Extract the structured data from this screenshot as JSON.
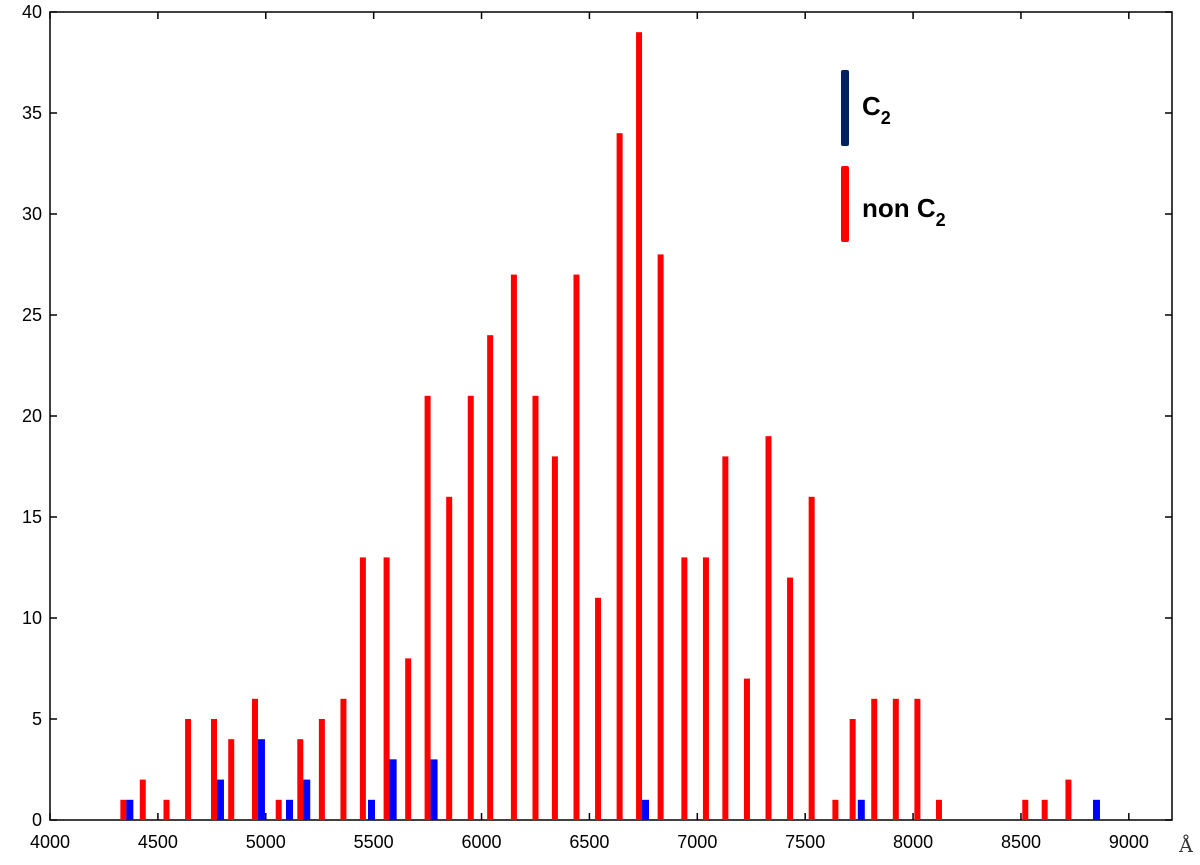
{
  "chart_data": {
    "type": "bar",
    "xlim": [
      4000,
      9200
    ],
    "ylim": [
      0,
      40
    ],
    "x_unit": "Å",
    "x_ticks": [
      4000,
      4500,
      5000,
      5500,
      6000,
      6500,
      7000,
      7500,
      8000,
      8500,
      9000
    ],
    "y_ticks": [
      0,
      5,
      10,
      15,
      20,
      25,
      30,
      35,
      40
    ],
    "grid": false,
    "legend_position": "top-right",
    "series": [
      {
        "name": "C2",
        "color": "#0000ff",
        "legend_color": "#002060",
        "points": [
          {
            "x": 4370,
            "y": 1
          },
          {
            "x": 4790,
            "y": 2
          },
          {
            "x": 4980,
            "y": 4
          },
          {
            "x": 5110,
            "y": 1
          },
          {
            "x": 5190,
            "y": 2
          },
          {
            "x": 5490,
            "y": 1
          },
          {
            "x": 5590,
            "y": 3
          },
          {
            "x": 5590,
            "y": 3
          },
          {
            "x": 5780,
            "y": 3
          },
          {
            "x": 6760,
            "y": 1
          },
          {
            "x": 7760,
            "y": 1
          },
          {
            "x": 8850,
            "y": 1
          }
        ]
      },
      {
        "name": "non C2",
        "color": "#ff0000",
        "legend_color": "#ff0000",
        "points": [
          {
            "x": 4340,
            "y": 1
          },
          {
            "x": 4430,
            "y": 2
          },
          {
            "x": 4540,
            "y": 1
          },
          {
            "x": 4640,
            "y": 5
          },
          {
            "x": 4760,
            "y": 5
          },
          {
            "x": 4840,
            "y": 4
          },
          {
            "x": 4950,
            "y": 6
          },
          {
            "x": 5060,
            "y": 1
          },
          {
            "x": 5160,
            "y": 4
          },
          {
            "x": 5260,
            "y": 5
          },
          {
            "x": 5360,
            "y": 6
          },
          {
            "x": 5450,
            "y": 13
          },
          {
            "x": 5560,
            "y": 13
          },
          {
            "x": 5660,
            "y": 8
          },
          {
            "x": 5750,
            "y": 21
          },
          {
            "x": 5850,
            "y": 16
          },
          {
            "x": 5950,
            "y": 21
          },
          {
            "x": 6040,
            "y": 24
          },
          {
            "x": 6150,
            "y": 27
          },
          {
            "x": 6250,
            "y": 21
          },
          {
            "x": 6340,
            "y": 18
          },
          {
            "x": 6440,
            "y": 27
          },
          {
            "x": 6540,
            "y": 11
          },
          {
            "x": 6640,
            "y": 34
          },
          {
            "x": 6730,
            "y": 39
          },
          {
            "x": 6830,
            "y": 28
          },
          {
            "x": 6940,
            "y": 13
          },
          {
            "x": 7040,
            "y": 13
          },
          {
            "x": 7130,
            "y": 18
          },
          {
            "x": 7230,
            "y": 7
          },
          {
            "x": 7330,
            "y": 19
          },
          {
            "x": 7430,
            "y": 12
          },
          {
            "x": 7530,
            "y": 16
          },
          {
            "x": 7640,
            "y": 1
          },
          {
            "x": 7720,
            "y": 5
          },
          {
            "x": 7820,
            "y": 6
          },
          {
            "x": 7920,
            "y": 6
          },
          {
            "x": 8020,
            "y": 6
          },
          {
            "x": 8120,
            "y": 1
          },
          {
            "x": 8520,
            "y": 1
          },
          {
            "x": 8610,
            "y": 1
          },
          {
            "x": 8720,
            "y": 2
          }
        ]
      }
    ]
  }
}
